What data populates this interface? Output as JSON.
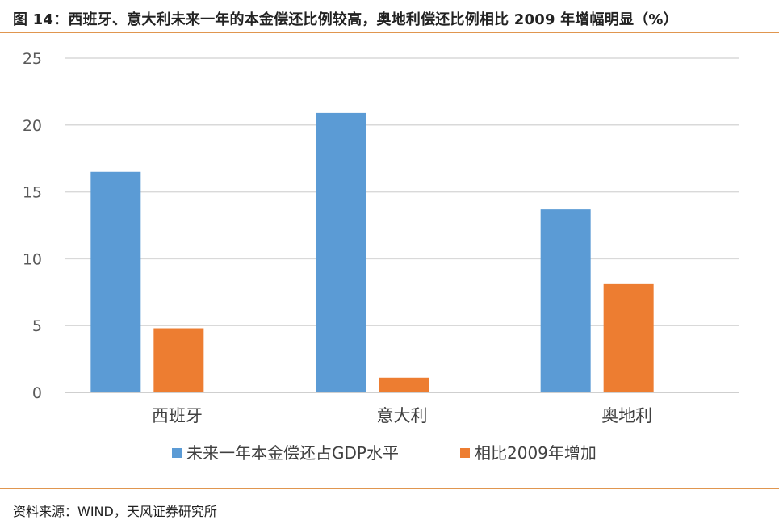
{
  "figure": {
    "title": "图 14：西班牙、意大利未来一年的本金偿还比例较高，奥地利偿还比例相比 2009 年增幅明显（%）",
    "source": "资料来源：WIND，天风证券研究所",
    "accent_color": "#e0964f"
  },
  "chart_data": {
    "type": "bar",
    "title": "",
    "xlabel": "",
    "ylabel": "",
    "categories": [
      "西班牙",
      "意大利",
      "奥地利"
    ],
    "series": [
      {
        "name": "未来一年本金偿还占GDP水平",
        "values": [
          16.5,
          20.9,
          13.7
        ],
        "color": "#5b9bd5"
      },
      {
        "name": "相比2009年增加",
        "values": [
          4.8,
          1.1,
          8.1
        ],
        "color": "#ed7d31"
      }
    ],
    "ylim": [
      0,
      25
    ],
    "yticks": [
      0,
      5,
      10,
      15,
      20,
      25
    ],
    "grid": true,
    "legend_position": "bottom"
  }
}
